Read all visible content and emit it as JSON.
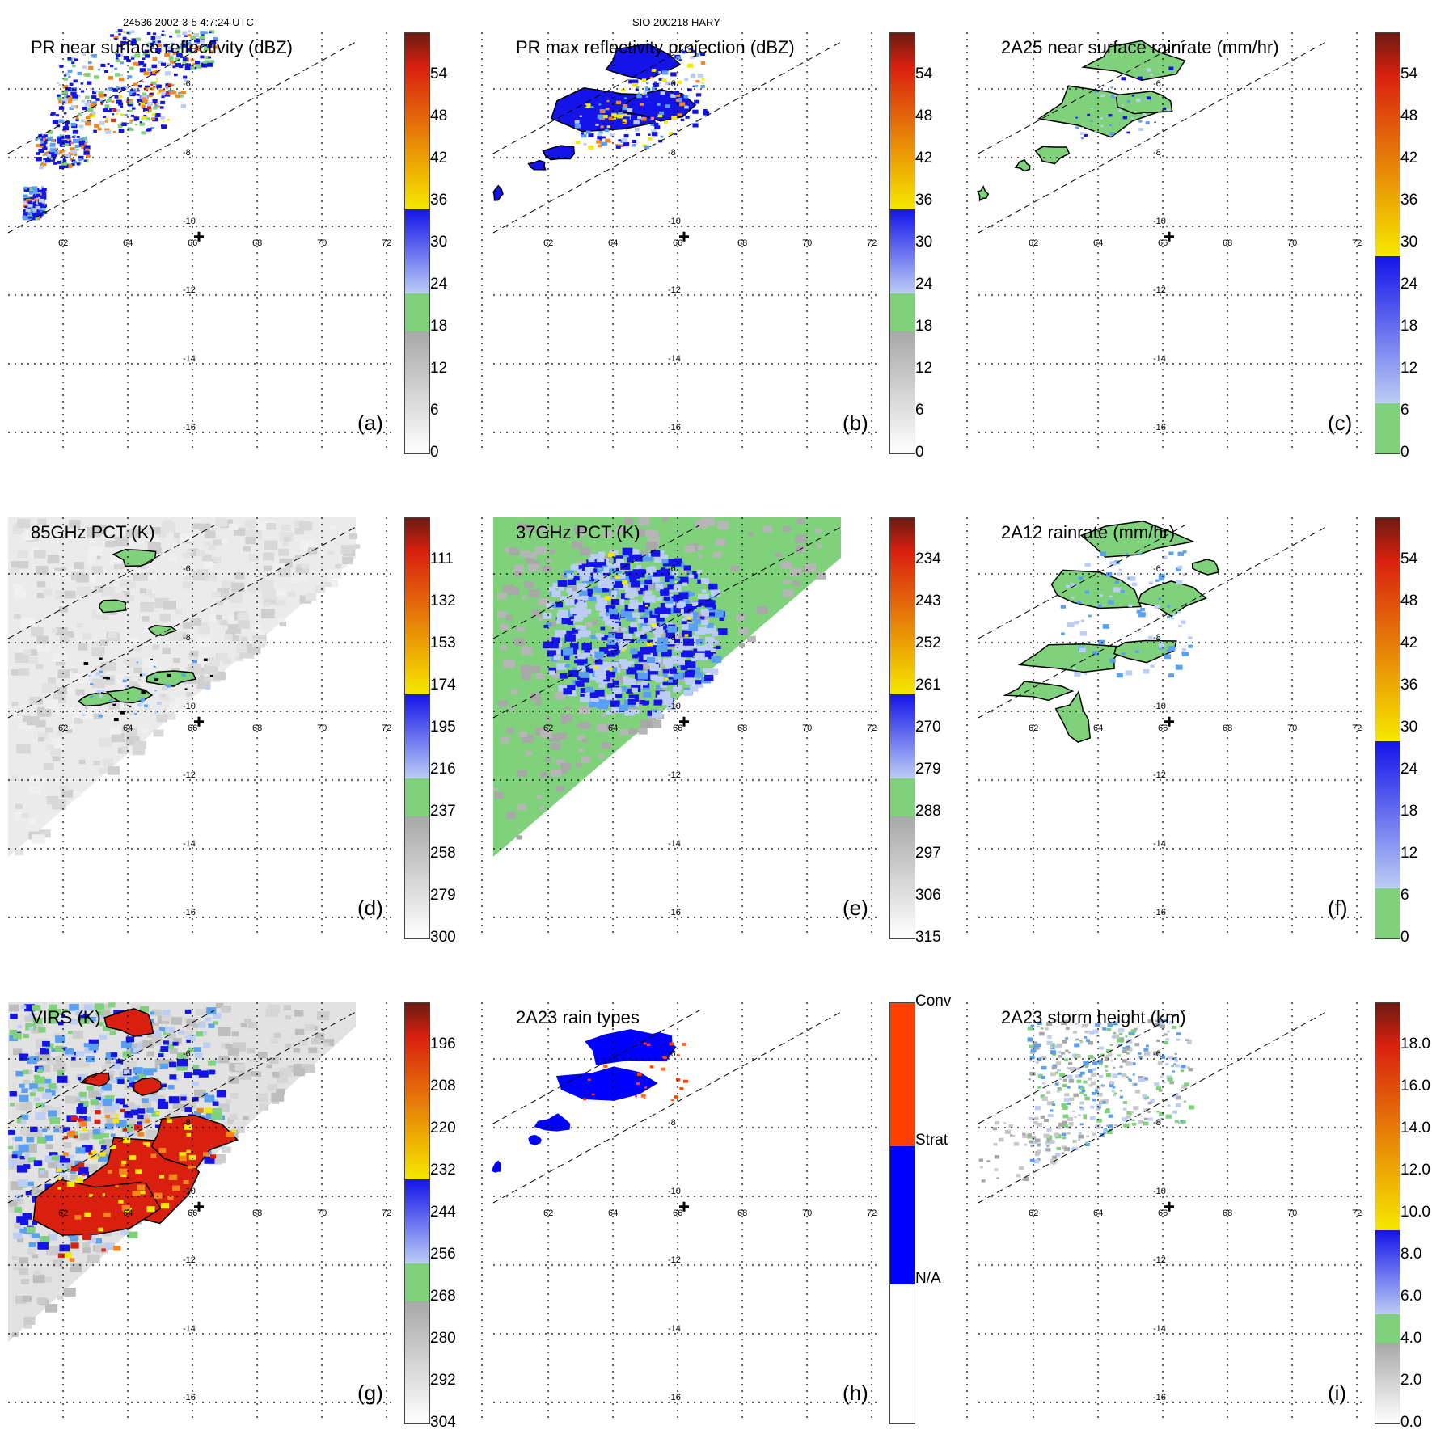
{
  "header": {
    "orbit_time": "24536 2002-3-5 4:7:24 UTC",
    "storm": "SIO 200218 HARY"
  },
  "map": {
    "lon_labels": [
      "62",
      "64",
      "66",
      "68",
      "70",
      "72"
    ],
    "lat_labels": [
      "-6",
      "-8",
      "-10",
      "-12",
      "-14",
      "-16"
    ],
    "storm_center": {
      "lon": 66.2,
      "lat": -10.3
    }
  },
  "colors": {
    "green": "#7fd27b",
    "light_blue": "#bccdf6",
    "mid_blue": "#5aa0f2",
    "blue": "#1414e8",
    "yellow": "#f6e800",
    "orange": "#f5861b",
    "red": "#d9200f",
    "dark_red": "#6b1b12",
    "gray": "#a8a8a8",
    "conv": "#ff4000",
    "strat": "#0000ff"
  },
  "panels": [
    {
      "id": "a",
      "title": "PR near surface reflectivity (dBZ)",
      "letter": "(a)",
      "colorbar": [
        "54",
        "48",
        "42",
        "36",
        "30",
        "24",
        "18",
        "12",
        "6",
        "0"
      ]
    },
    {
      "id": "b",
      "title": "PR max reflectivity projection (dBZ)",
      "letter": "(b)",
      "colorbar": [
        "54",
        "48",
        "42",
        "36",
        "30",
        "24",
        "18",
        "12",
        "6",
        "0"
      ]
    },
    {
      "id": "c",
      "title": "2A25 near surface rainrate (mm/hr)",
      "letter": "(c)",
      "colorbar": [
        "54",
        "48",
        "42",
        "36",
        "30",
        "24",
        "18",
        "12",
        "6",
        "0"
      ]
    },
    {
      "id": "d",
      "title": "85GHz PCT (K)",
      "letter": "(d)",
      "colorbar": [
        "111",
        "132",
        "153",
        "174",
        "195",
        "216",
        "237",
        "258",
        "279",
        "300"
      ]
    },
    {
      "id": "e",
      "title": "37GHz PCT (K)",
      "letter": "(e)",
      "colorbar": [
        "234",
        "243",
        "252",
        "261",
        "270",
        "279",
        "288",
        "297",
        "306",
        "315"
      ]
    },
    {
      "id": "f",
      "title": "2A12 rainrate (mm/hr)",
      "letter": "(f)",
      "colorbar": [
        "54",
        "48",
        "42",
        "36",
        "30",
        "24",
        "18",
        "12",
        "6",
        "0"
      ]
    },
    {
      "id": "g",
      "title": "VIRS (K)",
      "letter": "(g)",
      "colorbar": [
        "196",
        "208",
        "220",
        "232",
        "244",
        "256",
        "268",
        "280",
        "292",
        "304"
      ]
    },
    {
      "id": "h",
      "title": "2A23 rain types",
      "letter": "(h)",
      "colorbar": [
        "Conv",
        "Strat",
        "N/A"
      ]
    },
    {
      "id": "i",
      "title": "2A23 storm height (km)",
      "letter": "(i)",
      "colorbar": [
        "18.0",
        "16.0",
        "14.0",
        "12.0",
        "10.0",
        "8.0",
        "6.0",
        "4.0",
        "2.0",
        "0.0"
      ]
    }
  ]
}
